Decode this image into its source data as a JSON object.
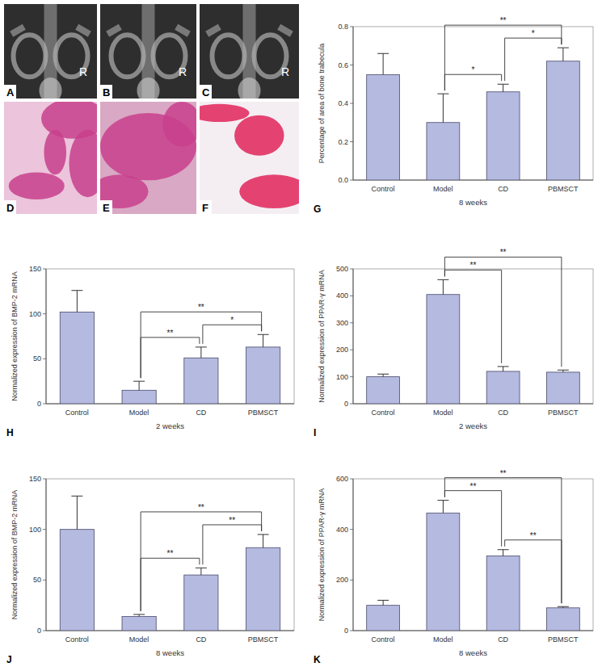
{
  "chart_data": [
    {
      "type": "bar",
      "panel_label": "G",
      "y_label": "Percentage of area of bone trabecula",
      "x_label": "8 weeks",
      "categories": [
        "Control",
        "Model",
        "CD",
        "PBMSCT"
      ],
      "values": [
        0.55,
        0.3,
        0.46,
        0.62
      ],
      "errors": [
        0.11,
        0.15,
        0.04,
        0.07
      ],
      "color": "#b4bae0",
      "ylim": [
        0,
        0.8
      ],
      "yticks": [
        {
          "value": 0,
          "label": "0.0"
        },
        {
          "value": 0.2,
          "label": "0.2"
        },
        {
          "value": 0.4,
          "label": "0.4"
        },
        {
          "value": 0.6,
          "label": "0.6"
        },
        {
          "value": 0.8,
          "label": "0.8"
        }
      ],
      "significance": [
        {
          "from": 1,
          "to": 3,
          "label": "**"
        },
        {
          "from": 2,
          "to": 3,
          "label": "*"
        },
        {
          "from": 1,
          "to": 2,
          "label": "*"
        }
      ]
    },
    {
      "type": "bar",
      "panel_label": "H",
      "y_label": "Normalized expression of BMP-2 mRNA",
      "x_label": "2 weeks",
      "categories": [
        "Control",
        "Model",
        "CD",
        "PBMSCT"
      ],
      "values": [
        102,
        15,
        51,
        63
      ],
      "errors": [
        24,
        10,
        12,
        14
      ],
      "color": "#b4bae0",
      "ylim": [
        0,
        150
      ],
      "yticks": [
        0,
        50,
        100,
        150
      ],
      "significance": [
        {
          "from": 1,
          "to": 3,
          "label": "**"
        },
        {
          "from": 2,
          "to": 3,
          "label": "*"
        },
        {
          "from": 1,
          "to": 2,
          "label": "**"
        }
      ]
    },
    {
      "type": "bar",
      "panel_label": "I",
      "y_label": "Normalized expression of PPAR-γ mRNA",
      "x_label": "2 weeks",
      "categories": [
        "Control",
        "Model",
        "CD",
        "PBMSCT"
      ],
      "values": [
        100,
        405,
        120,
        117
      ],
      "errors": [
        10,
        55,
        18,
        8
      ],
      "color": "#b4bae0",
      "ylim": [
        0,
        500
      ],
      "yticks": [
        0,
        100,
        200,
        300,
        400,
        500
      ],
      "significance": [
        {
          "from": 1,
          "to": 3,
          "label": "**"
        },
        {
          "from": 1,
          "to": 2,
          "label": "**"
        }
      ]
    },
    {
      "type": "bar",
      "panel_label": "J",
      "y_label": "Normalized expression of BMP-2 mRNA",
      "x_label": "8 weeks",
      "categories": [
        "Control",
        "Model",
        "CD",
        "PBMSCT"
      ],
      "values": [
        100,
        14,
        55,
        82
      ],
      "errors": [
        33,
        2,
        7,
        13
      ],
      "color": "#b4bae0",
      "ylim": [
        0,
        150
      ],
      "yticks": [
        0,
        50,
        100,
        150
      ],
      "significance": [
        {
          "from": 1,
          "to": 3,
          "label": "**"
        },
        {
          "from": 2,
          "to": 3,
          "label": "**"
        },
        {
          "from": 1,
          "to": 2,
          "label": "**"
        }
      ]
    },
    {
      "type": "bar",
      "panel_label": "K",
      "y_label": "Normalized expression of PPAR-γ mRNA",
      "x_label": "8 weeks",
      "categories": [
        "Control",
        "Model",
        "CD",
        "PBMSCT"
      ],
      "values": [
        100,
        465,
        295,
        90
      ],
      "errors": [
        20,
        50,
        25,
        5
      ],
      "color": "#b4bae0",
      "ylim": [
        0,
        600
      ],
      "yticks": [
        0,
        200,
        400,
        600
      ],
      "significance": [
        {
          "from": 1,
          "to": 3,
          "label": "**"
        },
        {
          "from": 1,
          "to": 2,
          "label": "**"
        },
        {
          "from": 2,
          "to": 3,
          "label": "**"
        }
      ]
    }
  ],
  "images": [
    {
      "label": "A",
      "marker": "R"
    },
    {
      "label": "B",
      "marker": "R"
    },
    {
      "label": "C",
      "marker": "R"
    },
    {
      "label": "D"
    },
    {
      "label": "E"
    },
    {
      "label": "F"
    }
  ]
}
